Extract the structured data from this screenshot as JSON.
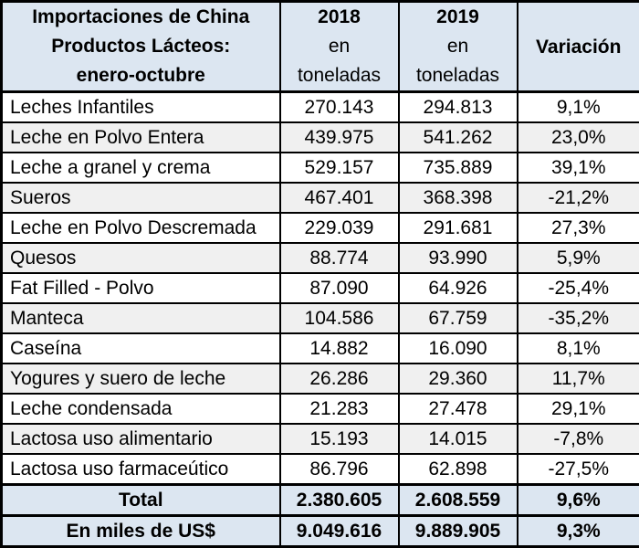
{
  "colors": {
    "header_bg": "#dce6f1",
    "alt_row_bg": "#f0f0f0",
    "border": "#000000",
    "text": "#000000"
  },
  "chart_data": {
    "type": "table",
    "title": "Importaciones de China Productos Lácteos: enero-octubre",
    "title_lines": [
      "Importaciones de China",
      "Productos Lácteos:",
      "enero-octubre"
    ],
    "column_headers": [
      {
        "year": "2018",
        "unit_line1": "en",
        "unit_line2": "toneladas"
      },
      {
        "year": "2019",
        "unit_line1": "en",
        "unit_line2": "toneladas"
      },
      {
        "label": "Variación"
      }
    ],
    "rows": [
      {
        "label": "Leches Infantiles",
        "tons_2018": "270.143",
        "tons_2019": "294.813",
        "variation": "9,1%"
      },
      {
        "label": "Leche en Polvo Entera",
        "tons_2018": "439.975",
        "tons_2019": "541.262",
        "variation": "23,0%"
      },
      {
        "label": "Leche a granel y crema",
        "tons_2018": "529.157",
        "tons_2019": "735.889",
        "variation": "39,1%"
      },
      {
        "label": "Sueros",
        "tons_2018": "467.401",
        "tons_2019": "368.398",
        "variation": "-21,2%"
      },
      {
        "label": "Leche en Polvo Descremada",
        "tons_2018": "229.039",
        "tons_2019": "291.681",
        "variation": "27,3%"
      },
      {
        "label": "Quesos",
        "tons_2018": "88.774",
        "tons_2019": "93.990",
        "variation": "5,9%"
      },
      {
        "label": "Fat Filled - Polvo",
        "tons_2018": "87.090",
        "tons_2019": "64.926",
        "variation": "-25,4%"
      },
      {
        "label": "Manteca",
        "tons_2018": "104.586",
        "tons_2019": "67.759",
        "variation": "-35,2%"
      },
      {
        "label": "Caseína",
        "tons_2018": "14.882",
        "tons_2019": "16.090",
        "variation": "8,1%"
      },
      {
        "label": "Yogures y suero de leche",
        "tons_2018": "26.286",
        "tons_2019": "29.360",
        "variation": "11,7%"
      },
      {
        "label": "Leche condensada",
        "tons_2018": "21.283",
        "tons_2019": "27.478",
        "variation": "29,1%"
      },
      {
        "label": "Lactosa uso alimentario",
        "tons_2018": "15.193",
        "tons_2019": "14.015",
        "variation": "-7,8%"
      },
      {
        "label": "Lactosa uso farmaceútico",
        "tons_2018": "86.796",
        "tons_2019": "62.898",
        "variation": "-27,5%"
      }
    ],
    "total_row": {
      "label": "Total",
      "tons_2018": "2.380.605",
      "tons_2019": "2.608.559",
      "variation": "9,6%"
    },
    "usd_row": {
      "label": "En miles de US$",
      "tons_2018": "9.049.616",
      "tons_2019": "9.889.905",
      "variation": "9,3%"
    }
  }
}
